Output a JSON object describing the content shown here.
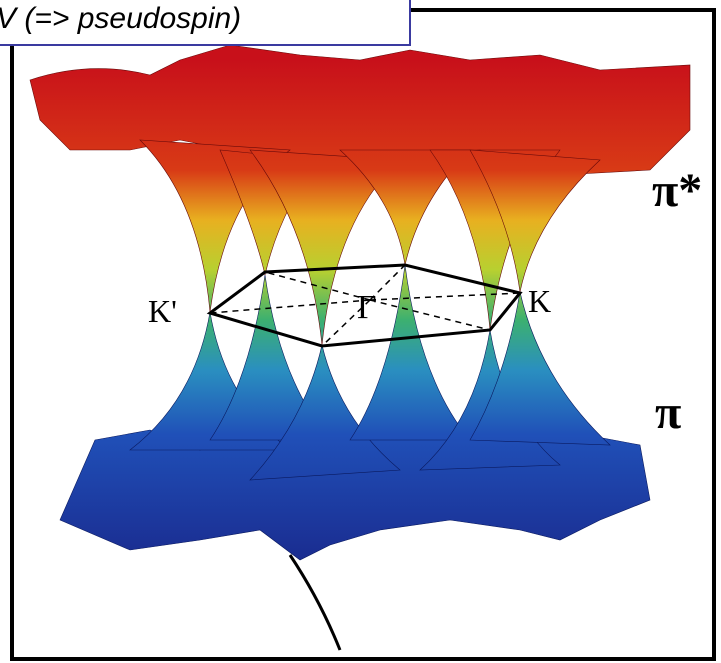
{
  "caption": "V (=> pseudospin)",
  "labels": {
    "k_prime": "K'",
    "gamma": "Γ",
    "k": "K",
    "pi_star": "π*",
    "pi": "π"
  }
}
